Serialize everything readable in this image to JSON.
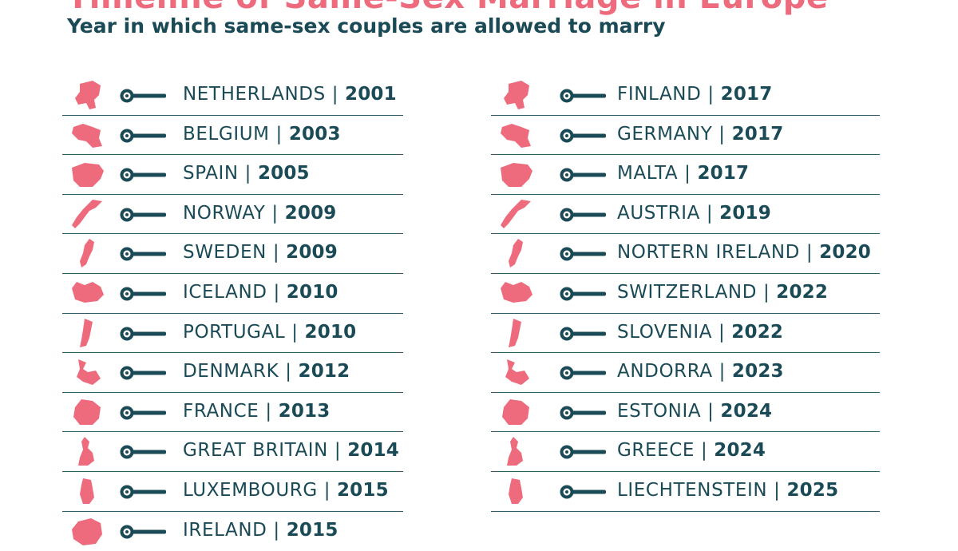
{
  "header": {
    "title": "Timeline of Same-Sex Marriage in Europe",
    "subtitle": "Year in which same-sex couples are allowed to marry"
  },
  "colors": {
    "accent": "#ee6b7d",
    "text": "#1b4a57",
    "divider": "#2f5d6a"
  },
  "left_column": [
    {
      "country": "NETHERLANDS",
      "separator": "|",
      "year": "2001",
      "shape_icon": "netherlands-map-icon"
    },
    {
      "country": "BELGIUM",
      "separator": "|",
      "year": "2003",
      "shape_icon": "belgium-map-icon"
    },
    {
      "country": "SPAIN",
      "separator": "|",
      "year": "2005",
      "shape_icon": "spain-map-icon"
    },
    {
      "country": "NORWAY",
      "separator": "|",
      "year": "2009",
      "shape_icon": "norway-map-icon"
    },
    {
      "country": "SWEDEN",
      "separator": "|",
      "year": "2009",
      "shape_icon": "sweden-map-icon"
    },
    {
      "country": "ICELAND",
      "separator": "|",
      "year": "2010",
      "shape_icon": "iceland-map-icon"
    },
    {
      "country": "PORTUGAL",
      "separator": "|",
      "year": "2010",
      "shape_icon": "portugal-map-icon"
    },
    {
      "country": "DENMARK",
      "separator": "|",
      "year": "2012",
      "shape_icon": "denmark-map-icon"
    },
    {
      "country": "FRANCE",
      "separator": "|",
      "year": "2013",
      "shape_icon": "france-map-icon"
    },
    {
      "country": "GREAT BRITAIN",
      "separator": "|",
      "year": "2014",
      "shape_icon": "great-britain-map-icon"
    },
    {
      "country": "LUXEMBOURG",
      "separator": "|",
      "year": "2015",
      "shape_icon": "luxembourg-map-icon"
    },
    {
      "country": "IRELAND",
      "separator": "|",
      "year": "2015",
      "shape_icon": "ireland-map-icon"
    }
  ],
  "right_column": [
    {
      "country": "FINLAND",
      "separator": "|",
      "year": "2017",
      "shape_icon": "finland-map-icon"
    },
    {
      "country": "GERMANY",
      "separator": "|",
      "year": "2017",
      "shape_icon": "germany-map-icon"
    },
    {
      "country": "MALTA",
      "separator": "|",
      "year": "2017",
      "shape_icon": "malta-map-icon"
    },
    {
      "country": "AUSTRIA",
      "separator": "|",
      "year": "2019",
      "shape_icon": "austria-map-icon"
    },
    {
      "country": "NORTERN IRELAND",
      "separator": "|",
      "year": "2020",
      "shape_icon": "northern-ireland-map-icon"
    },
    {
      "country": "SWITZERLAND",
      "separator": "|",
      "year": "2022",
      "shape_icon": "switzerland-map-icon"
    },
    {
      "country": "SLOVENIA",
      "separator": "|",
      "year": "2022",
      "shape_icon": "slovenia-map-icon"
    },
    {
      "country": "ANDORRA",
      "separator": "|",
      "year": "2023",
      "shape_icon": "andorra-map-icon"
    },
    {
      "country": "ESTONIA",
      "separator": "|",
      "year": "2024",
      "shape_icon": "estonia-map-icon"
    },
    {
      "country": "GREECE",
      "separator": "|",
      "year": "2024",
      "shape_icon": "greece-map-icon"
    },
    {
      "country": "LIECHTENSTEIN",
      "separator": "|",
      "year": "2025",
      "shape_icon": "liechtenstein-map-icon"
    }
  ]
}
